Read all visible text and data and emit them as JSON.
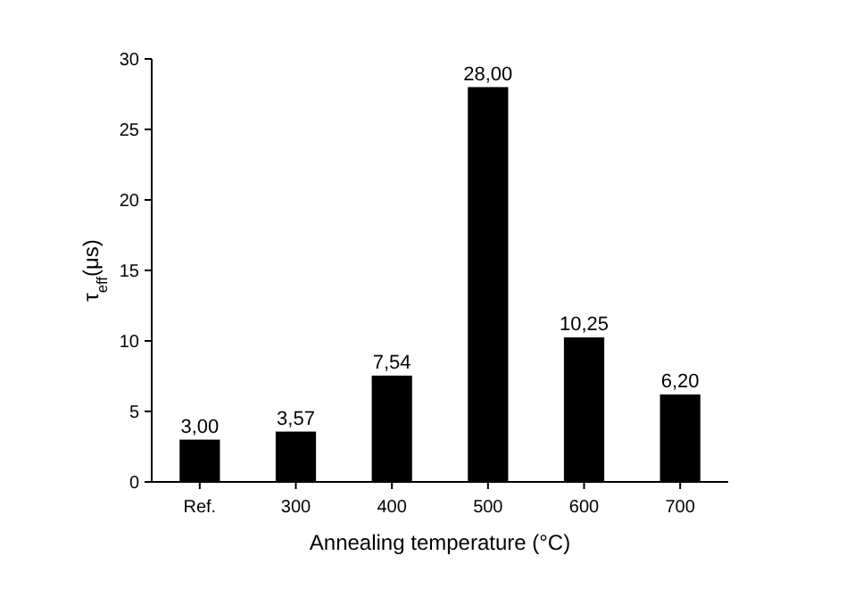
{
  "chart_data": {
    "type": "bar",
    "xlabel": "Annealing temperature (°C)",
    "ylabel": "τ$_{eff}$(μs)",
    "categories": [
      "Ref.",
      "300",
      "400",
      "500",
      "600",
      "700"
    ],
    "values": [
      3.0,
      3.57,
      7.54,
      28.0,
      10.25,
      6.2
    ],
    "value_labels": [
      "3,00",
      "3,57",
      "7,54",
      "28,00",
      "10,25",
      "6,20"
    ],
    "color": "#000000",
    "ylim": [
      0,
      30
    ],
    "yticks": [
      0,
      5,
      10,
      15,
      20,
      25,
      30
    ],
    "grid": false
  }
}
